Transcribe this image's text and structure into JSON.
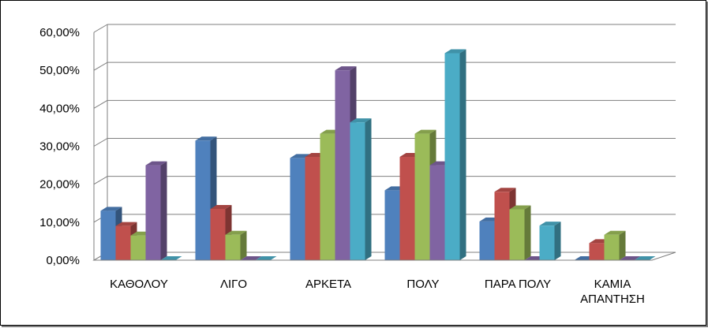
{
  "chart_data": {
    "type": "bar",
    "title": "",
    "xlabel": "",
    "ylabel": "",
    "categories": [
      [
        "ΚΑΘΟΛΟΥ"
      ],
      [
        "ΛΙΓΟ"
      ],
      [
        "ΑΡΚΕΤΑ"
      ],
      [
        "ΠΟΛΥ"
      ],
      [
        "ΠΑΡΑ ΠΟΛΥ"
      ],
      [
        "ΚΑΜΙΑ",
        "ΑΠΑΝΤΗΣΗ"
      ]
    ],
    "ylim": [
      0,
      60
    ],
    "yticks": [
      "0,00%",
      "10,00%",
      "20,00%",
      "30,00%",
      "40,00%",
      "50,00%",
      "60,00%"
    ],
    "grid": true,
    "legend": "none",
    "series": [
      {
        "color": "#4F81BD",
        "values": [
          13.0,
          31.5,
          26.9,
          18.4,
          10.2,
          0.0
        ]
      },
      {
        "color": "#C0504D",
        "values": [
          9.0,
          13.5,
          27.2,
          27.2,
          18.0,
          4.5
        ]
      },
      {
        "color": "#9BBB59",
        "values": [
          6.5,
          6.7,
          33.3,
          33.3,
          13.4,
          6.7
        ]
      },
      {
        "color": "#8064A2",
        "values": [
          25.0,
          0.0,
          50.0,
          25.0,
          0.0,
          0.0
        ]
      },
      {
        "color": "#4BACC6",
        "values": [
          0.0,
          0.0,
          36.3,
          54.5,
          9.1,
          0.0
        ]
      }
    ]
  }
}
